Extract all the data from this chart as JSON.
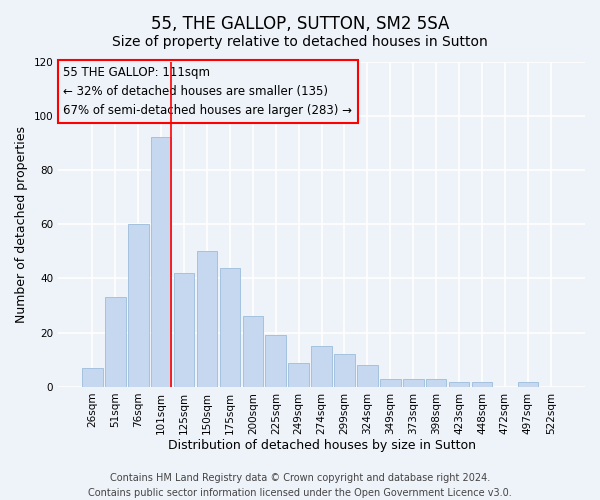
{
  "title": "55, THE GALLOP, SUTTON, SM2 5SA",
  "subtitle": "Size of property relative to detached houses in Sutton",
  "xlabel": "Distribution of detached houses by size in Sutton",
  "ylabel": "Number of detached properties",
  "bar_categories": [
    "26sqm",
    "51sqm",
    "76sqm",
    "101sqm",
    "125sqm",
    "150sqm",
    "175sqm",
    "200sqm",
    "225sqm",
    "249sqm",
    "274sqm",
    "299sqm",
    "324sqm",
    "349sqm",
    "373sqm",
    "398sqm",
    "423sqm",
    "448sqm",
    "472sqm",
    "497sqm",
    "522sqm"
  ],
  "bar_values": [
    7,
    33,
    60,
    92,
    42,
    50,
    44,
    26,
    19,
    9,
    15,
    12,
    8,
    3,
    3,
    3,
    2,
    2,
    0,
    2,
    0
  ],
  "bar_color": "#c5d8f0",
  "bar_edge_color": "#9bbcda",
  "ylim": [
    0,
    120
  ],
  "yticks": [
    0,
    20,
    40,
    60,
    80,
    100,
    120
  ],
  "red_line_index": 3,
  "annotation_line1": "55 THE GALLOP: 111sqm",
  "annotation_line2": "← 32% of detached houses are smaller (135)",
  "annotation_line3": "67% of semi-detached houses are larger (283) →",
  "footer_line1": "Contains HM Land Registry data © Crown copyright and database right 2024.",
  "footer_line2": "Contains public sector information licensed under the Open Government Licence v3.0.",
  "background_color": "#eef2f9",
  "grid_color": "#ffffff",
  "title_fontsize": 12,
  "subtitle_fontsize": 10,
  "axis_label_fontsize": 9,
  "tick_fontsize": 7.5,
  "annotation_fontsize": 8.5,
  "footer_fontsize": 7
}
